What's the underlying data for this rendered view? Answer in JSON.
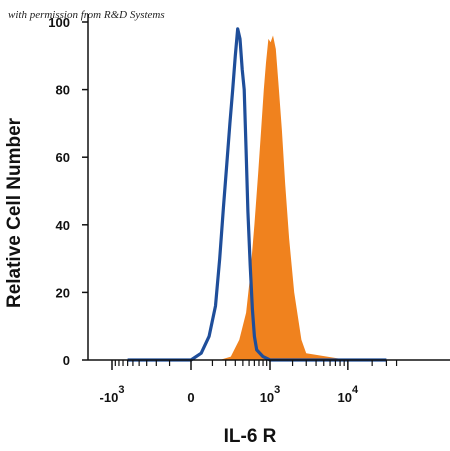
{
  "watermark": "with permission from R&D Systems",
  "chart_data": {
    "type": "area",
    "xlabel": "IL-6 R",
    "ylabel": "Relative Cell Number",
    "xscale": "biexponential",
    "ylim": [
      0,
      100
    ],
    "y_ticks": [
      "0",
      "20",
      "40",
      "60",
      "80",
      "100"
    ],
    "x_ticks": [
      {
        "base": "-10",
        "exp": "3",
        "value": -1000
      },
      {
        "base": "0",
        "exp": "",
        "value": 0
      },
      {
        "base": "10",
        "exp": "3",
        "value": 1000
      },
      {
        "base": "10",
        "exp": "4",
        "value": 10000
      }
    ],
    "series": [
      {
        "name": "",
        "style": "outline",
        "color": "#1f4e9a",
        "x": [
          -600,
          0,
          40,
          80,
          120,
          150,
          180,
          210,
          240,
          270,
          300,
          330,
          360,
          390,
          420,
          450,
          480,
          520,
          560,
          600,
          650,
          800,
          1000,
          2000,
          3000,
          10000,
          30000
        ],
        "y": [
          0,
          0,
          2,
          7,
          16,
          30,
          45,
          58,
          70,
          80,
          90,
          98,
          95,
          86,
          80,
          62,
          44,
          28,
          15,
          7,
          3,
          1,
          0,
          0,
          0,
          0,
          0
        ]
      },
      {
        "name": "",
        "style": "filled",
        "color": "#f0821e",
        "x": [
          -600,
          150,
          250,
          350,
          450,
          520,
          600,
          680,
          750,
          820,
          880,
          950,
          1020,
          1100,
          1200,
          1300,
          1450,
          1600,
          1800,
          2100,
          2600,
          3000,
          10000,
          30000
        ],
        "y": [
          0,
          0,
          1,
          6,
          14,
          25,
          40,
          55,
          68,
          80,
          88,
          95,
          94,
          96,
          92,
          82,
          68,
          52,
          36,
          20,
          6,
          2,
          0,
          0
        ]
      }
    ]
  }
}
